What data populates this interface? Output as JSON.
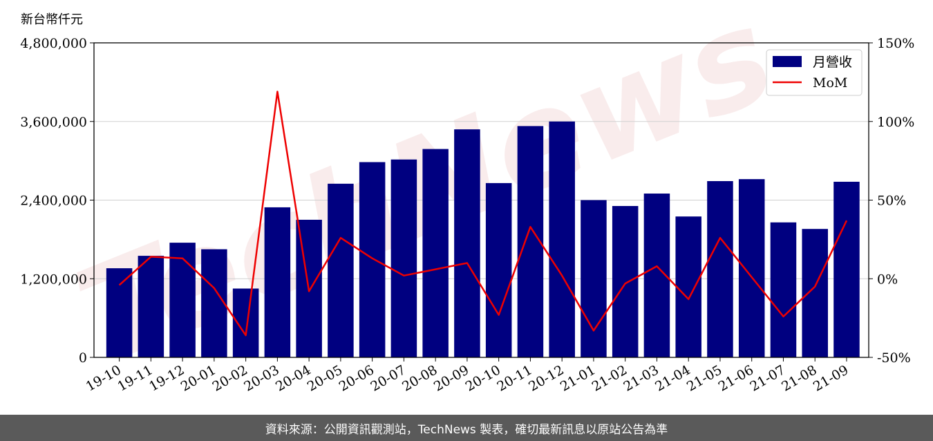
{
  "unit_label": "新台幣仟元",
  "footer": "資料來源：公開資訊觀測站，TechNews 製表，確切最新訊息以原站公告為準",
  "watermark": "TechNews",
  "chart_data": {
    "type": "bar",
    "categories": [
      "19-10",
      "19-11",
      "19-12",
      "20-01",
      "20-02",
      "20-03",
      "20-04",
      "20-05",
      "20-06",
      "20-07",
      "20-08",
      "20-09",
      "20-10",
      "20-11",
      "20-12",
      "21-01",
      "21-02",
      "21-03",
      "21-04",
      "21-05",
      "21-06",
      "21-07",
      "21-08",
      "21-09"
    ],
    "series": [
      {
        "name": "月營收",
        "type": "bar",
        "axis": "left",
        "color": "#000080",
        "values": [
          1360000,
          1550000,
          1750000,
          1650000,
          1050000,
          2290000,
          2100000,
          2650000,
          2980000,
          3020000,
          3180000,
          3480000,
          2660000,
          3530000,
          3600000,
          2400000,
          2310000,
          2500000,
          2150000,
          2690000,
          2720000,
          2060000,
          1960000,
          2680000
        ]
      },
      {
        "name": "MoM",
        "type": "line",
        "axis": "right",
        "color": "#ee0000",
        "values": [
          -4,
          14,
          13,
          -6,
          -36,
          119,
          -8,
          26,
          13,
          2,
          6,
          10,
          -23,
          33,
          2,
          -33,
          -3,
          8,
          -13,
          26,
          1,
          -24,
          -5,
          37
        ]
      }
    ],
    "left_axis": {
      "ylim": [
        0,
        4800000
      ],
      "ticks": [
        "0",
        "1,200,000",
        "2,400,000",
        "3,600,000",
        "4,800,000"
      ],
      "tick_values": [
        0,
        1200000,
        2400000,
        3600000,
        4800000
      ]
    },
    "right_axis": {
      "ylim": [
        -50,
        150
      ],
      "ticks": [
        "-50%",
        "0%",
        "50%",
        "100%",
        "150%"
      ],
      "tick_values": [
        -50,
        0,
        50,
        100,
        150
      ]
    },
    "grid": "horizontal",
    "legend_position": "top-right"
  }
}
